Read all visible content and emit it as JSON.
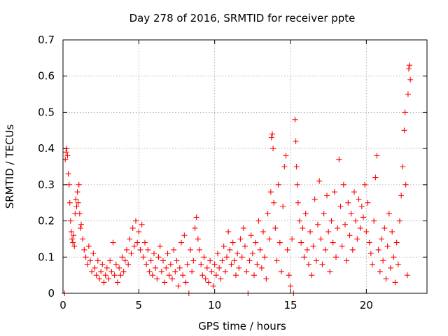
{
  "chart_data": {
    "type": "scatter",
    "title": "Day 278 of 2016, SRMTID for receiver ppte",
    "xlabel": "GPS time / hours",
    "ylabel": "SRMTID / TECUs",
    "xlim": [
      0,
      24
    ],
    "ylim": [
      0,
      0.7
    ],
    "grid": true,
    "marker": "+",
    "color": "#ff0000",
    "x_ticks": [
      0,
      5,
      10,
      15,
      20
    ],
    "x_tick_labels": [
      "0",
      "5",
      "10",
      "15",
      "20"
    ],
    "y_ticks": [
      0,
      0.1,
      0.2,
      0.3,
      0.4,
      0.5,
      0.6,
      0.7
    ],
    "y_tick_labels": [
      "0",
      "0.1",
      "0.2",
      "0.3",
      "0.4",
      "0.5",
      "0.6",
      "0.7"
    ],
    "series": [
      {
        "name": "SRMTID",
        "points": [
          [
            0.1,
            0.0
          ],
          [
            0.15,
            0.37
          ],
          [
            0.2,
            0.39
          ],
          [
            0.25,
            0.4
          ],
          [
            0.3,
            0.38
          ],
          [
            0.35,
            0.33
          ],
          [
            0.4,
            0.3
          ],
          [
            0.45,
            0.25
          ],
          [
            0.5,
            0.2
          ],
          [
            0.55,
            0.17
          ],
          [
            0.6,
            0.15
          ],
          [
            0.65,
            0.14
          ],
          [
            0.7,
            0.16
          ],
          [
            0.75,
            0.13
          ],
          [
            0.8,
            0.22
          ],
          [
            0.85,
            0.26
          ],
          [
            0.9,
            0.24
          ],
          [
            0.95,
            0.28
          ],
          [
            1.0,
            0.25
          ],
          [
            1.05,
            0.3
          ],
          [
            1.1,
            0.22
          ],
          [
            1.15,
            0.18
          ],
          [
            1.2,
            0.19
          ],
          [
            1.3,
            0.15
          ],
          [
            1.4,
            0.12
          ],
          [
            1.5,
            0.1
          ],
          [
            1.6,
            0.08
          ],
          [
            1.7,
            0.13
          ],
          [
            1.8,
            0.09
          ],
          [
            1.9,
            0.06
          ],
          [
            2.0,
            0.11
          ],
          [
            2.1,
            0.07
          ],
          [
            2.2,
            0.05
          ],
          [
            2.3,
            0.09
          ],
          [
            2.4,
            0.04
          ],
          [
            2.5,
            0.06
          ],
          [
            2.6,
            0.08
          ],
          [
            2.7,
            0.03
          ],
          [
            2.8,
            0.05
          ],
          [
            2.9,
            0.07
          ],
          [
            3.0,
            0.04
          ],
          [
            3.1,
            0.09
          ],
          [
            3.2,
            0.06
          ],
          [
            3.3,
            0.14
          ],
          [
            3.4,
            0.05
          ],
          [
            3.5,
            0.08
          ],
          [
            3.6,
            0.03
          ],
          [
            3.7,
            0.07
          ],
          [
            3.8,
            0.05
          ],
          [
            3.9,
            0.1
          ],
          [
            4.0,
            0.06
          ],
          [
            4.1,
            0.09
          ],
          [
            4.2,
            0.12
          ],
          [
            4.3,
            0.08
          ],
          [
            4.4,
            0.15
          ],
          [
            4.5,
            0.11
          ],
          [
            4.6,
            0.18
          ],
          [
            4.7,
            0.13
          ],
          [
            4.8,
            0.2
          ],
          [
            4.9,
            0.14
          ],
          [
            5.0,
            0.17
          ],
          [
            5.1,
            0.12
          ],
          [
            5.2,
            0.19
          ],
          [
            5.3,
            0.1
          ],
          [
            5.4,
            0.14
          ],
          [
            5.5,
            0.08
          ],
          [
            5.6,
            0.12
          ],
          [
            5.7,
            0.06
          ],
          [
            5.8,
            0.09
          ],
          [
            5.9,
            0.05
          ],
          [
            6.0,
            0.11
          ],
          [
            6.1,
            0.07
          ],
          [
            6.2,
            0.04
          ],
          [
            6.3,
            0.1
          ],
          [
            6.4,
            0.13
          ],
          [
            6.5,
            0.06
          ],
          [
            6.6,
            0.09
          ],
          [
            6.7,
            0.03
          ],
          [
            6.8,
            0.07
          ],
          [
            6.9,
            0.11
          ],
          [
            7.0,
            0.05
          ],
          [
            7.1,
            0.08
          ],
          [
            7.2,
            0.04
          ],
          [
            7.3,
            0.12
          ],
          [
            7.4,
            0.06
          ],
          [
            7.5,
            0.09
          ],
          [
            7.6,
            0.02
          ],
          [
            7.7,
            0.07
          ],
          [
            7.8,
            0.14
          ],
          [
            7.9,
            0.05
          ],
          [
            8.0,
            0.16
          ],
          [
            8.1,
            0.03
          ],
          [
            8.2,
            0.08
          ],
          [
            8.3,
            0.0
          ],
          [
            8.4,
            0.12
          ],
          [
            8.5,
            0.06
          ],
          [
            8.6,
            0.09
          ],
          [
            8.7,
            0.18
          ],
          [
            8.8,
            0.21
          ],
          [
            8.9,
            0.15
          ],
          [
            9.0,
            0.12
          ],
          [
            9.1,
            0.08
          ],
          [
            9.2,
            0.05
          ],
          [
            9.3,
            0.1
          ],
          [
            9.4,
            0.04
          ],
          [
            9.5,
            0.07
          ],
          [
            9.6,
            0.03
          ],
          [
            9.7,
            0.09
          ],
          [
            9.8,
            0.06
          ],
          [
            9.9,
            0.02
          ],
          [
            10.0,
            0.08
          ],
          [
            10.1,
            0.05
          ],
          [
            10.2,
            0.11
          ],
          [
            10.3,
            0.07
          ],
          [
            10.4,
            0.04
          ],
          [
            10.5,
            0.09
          ],
          [
            10.6,
            0.13
          ],
          [
            10.7,
            0.06
          ],
          [
            10.8,
            0.1
          ],
          [
            10.9,
            0.17
          ],
          [
            11.0,
            0.12
          ],
          [
            11.1,
            0.08
          ],
          [
            11.2,
            0.14
          ],
          [
            11.3,
            0.09
          ],
          [
            11.4,
            0.05
          ],
          [
            11.5,
            0.11
          ],
          [
            11.6,
            0.07
          ],
          [
            11.7,
            0.15
          ],
          [
            11.8,
            0.1
          ],
          [
            11.9,
            0.18
          ],
          [
            12.0,
            0.13
          ],
          [
            12.1,
            0.06
          ],
          [
            12.2,
            0.0
          ],
          [
            12.3,
            0.09
          ],
          [
            12.4,
            0.16
          ],
          [
            12.5,
            0.11
          ],
          [
            12.6,
            0.05
          ],
          [
            12.7,
            0.14
          ],
          [
            12.8,
            0.08
          ],
          [
            12.9,
            0.2
          ],
          [
            13.0,
            0.12
          ],
          [
            13.1,
            0.07
          ],
          [
            13.2,
            0.17
          ],
          [
            13.3,
            0.1
          ],
          [
            13.4,
            0.04
          ],
          [
            13.5,
            0.22
          ],
          [
            13.6,
            0.15
          ],
          [
            13.7,
            0.28
          ],
          [
            13.75,
            0.43
          ],
          [
            13.8,
            0.44
          ],
          [
            13.85,
            0.4
          ],
          [
            13.9,
            0.25
          ],
          [
            14.0,
            0.18
          ],
          [
            14.1,
            0.09
          ],
          [
            14.2,
            0.3
          ],
          [
            14.3,
            0.14
          ],
          [
            14.4,
            0.06
          ],
          [
            14.5,
            0.24
          ],
          [
            14.6,
            0.35
          ],
          [
            14.7,
            0.38
          ],
          [
            14.8,
            0.12
          ],
          [
            14.9,
            0.05
          ],
          [
            15.0,
            0.02
          ],
          [
            15.1,
            0.15
          ],
          [
            15.2,
            0.0
          ],
          [
            15.3,
            0.48
          ],
          [
            15.35,
            0.42
          ],
          [
            15.4,
            0.35
          ],
          [
            15.45,
            0.3
          ],
          [
            15.5,
            0.25
          ],
          [
            15.6,
            0.2
          ],
          [
            15.7,
            0.14
          ],
          [
            15.8,
            0.18
          ],
          [
            15.9,
            0.1
          ],
          [
            16.0,
            0.22
          ],
          [
            16.1,
            0.12
          ],
          [
            16.2,
            0.08
          ],
          [
            16.3,
            0.17
          ],
          [
            16.4,
            0.05
          ],
          [
            16.5,
            0.13
          ],
          [
            16.6,
            0.26
          ],
          [
            16.7,
            0.09
          ],
          [
            16.8,
            0.19
          ],
          [
            16.9,
            0.31
          ],
          [
            17.0,
            0.15
          ],
          [
            17.1,
            0.08
          ],
          [
            17.2,
            0.22
          ],
          [
            17.3,
            0.12
          ],
          [
            17.4,
            0.27
          ],
          [
            17.5,
            0.17
          ],
          [
            17.6,
            0.06
          ],
          [
            17.7,
            0.2
          ],
          [
            17.8,
            0.14
          ],
          [
            17.9,
            0.28
          ],
          [
            18.0,
            0.1
          ],
          [
            18.1,
            0.18
          ],
          [
            18.2,
            0.37
          ],
          [
            18.3,
            0.24
          ],
          [
            18.4,
            0.13
          ],
          [
            18.5,
            0.3
          ],
          [
            18.6,
            0.19
          ],
          [
            18.7,
            0.09
          ],
          [
            18.8,
            0.25
          ],
          [
            18.9,
            0.16
          ],
          [
            19.0,
            0.22
          ],
          [
            19.1,
            0.12
          ],
          [
            19.2,
            0.28
          ],
          [
            19.3,
            0.2
          ],
          [
            19.4,
            0.15
          ],
          [
            19.5,
            0.26
          ],
          [
            19.6,
            0.18
          ],
          [
            19.7,
            0.24
          ],
          [
            19.8,
            0.21
          ],
          [
            19.9,
            0.3
          ],
          [
            20.0,
            0.17
          ],
          [
            20.1,
            0.25
          ],
          [
            20.2,
            0.14
          ],
          [
            20.3,
            0.11
          ],
          [
            20.4,
            0.08
          ],
          [
            20.5,
            0.2
          ],
          [
            20.6,
            0.32
          ],
          [
            20.7,
            0.38
          ],
          [
            20.8,
            0.12
          ],
          [
            20.9,
            0.06
          ],
          [
            21.0,
            0.15
          ],
          [
            21.1,
            0.09
          ],
          [
            21.2,
            0.18
          ],
          [
            21.3,
            0.04
          ],
          [
            21.4,
            0.13
          ],
          [
            21.5,
            0.22
          ],
          [
            21.6,
            0.07
          ],
          [
            21.7,
            0.17
          ],
          [
            21.8,
            0.1
          ],
          [
            21.9,
            0.03
          ],
          [
            22.0,
            0.14
          ],
          [
            22.1,
            0.08
          ],
          [
            22.2,
            0.2
          ],
          [
            22.3,
            0.27
          ],
          [
            22.4,
            0.35
          ],
          [
            22.5,
            0.45
          ],
          [
            22.55,
            0.5
          ],
          [
            22.6,
            0.3
          ],
          [
            22.7,
            0.05
          ],
          [
            22.75,
            0.55
          ],
          [
            22.8,
            0.62
          ],
          [
            22.85,
            0.63
          ],
          [
            22.9,
            0.59
          ]
        ]
      }
    ]
  }
}
